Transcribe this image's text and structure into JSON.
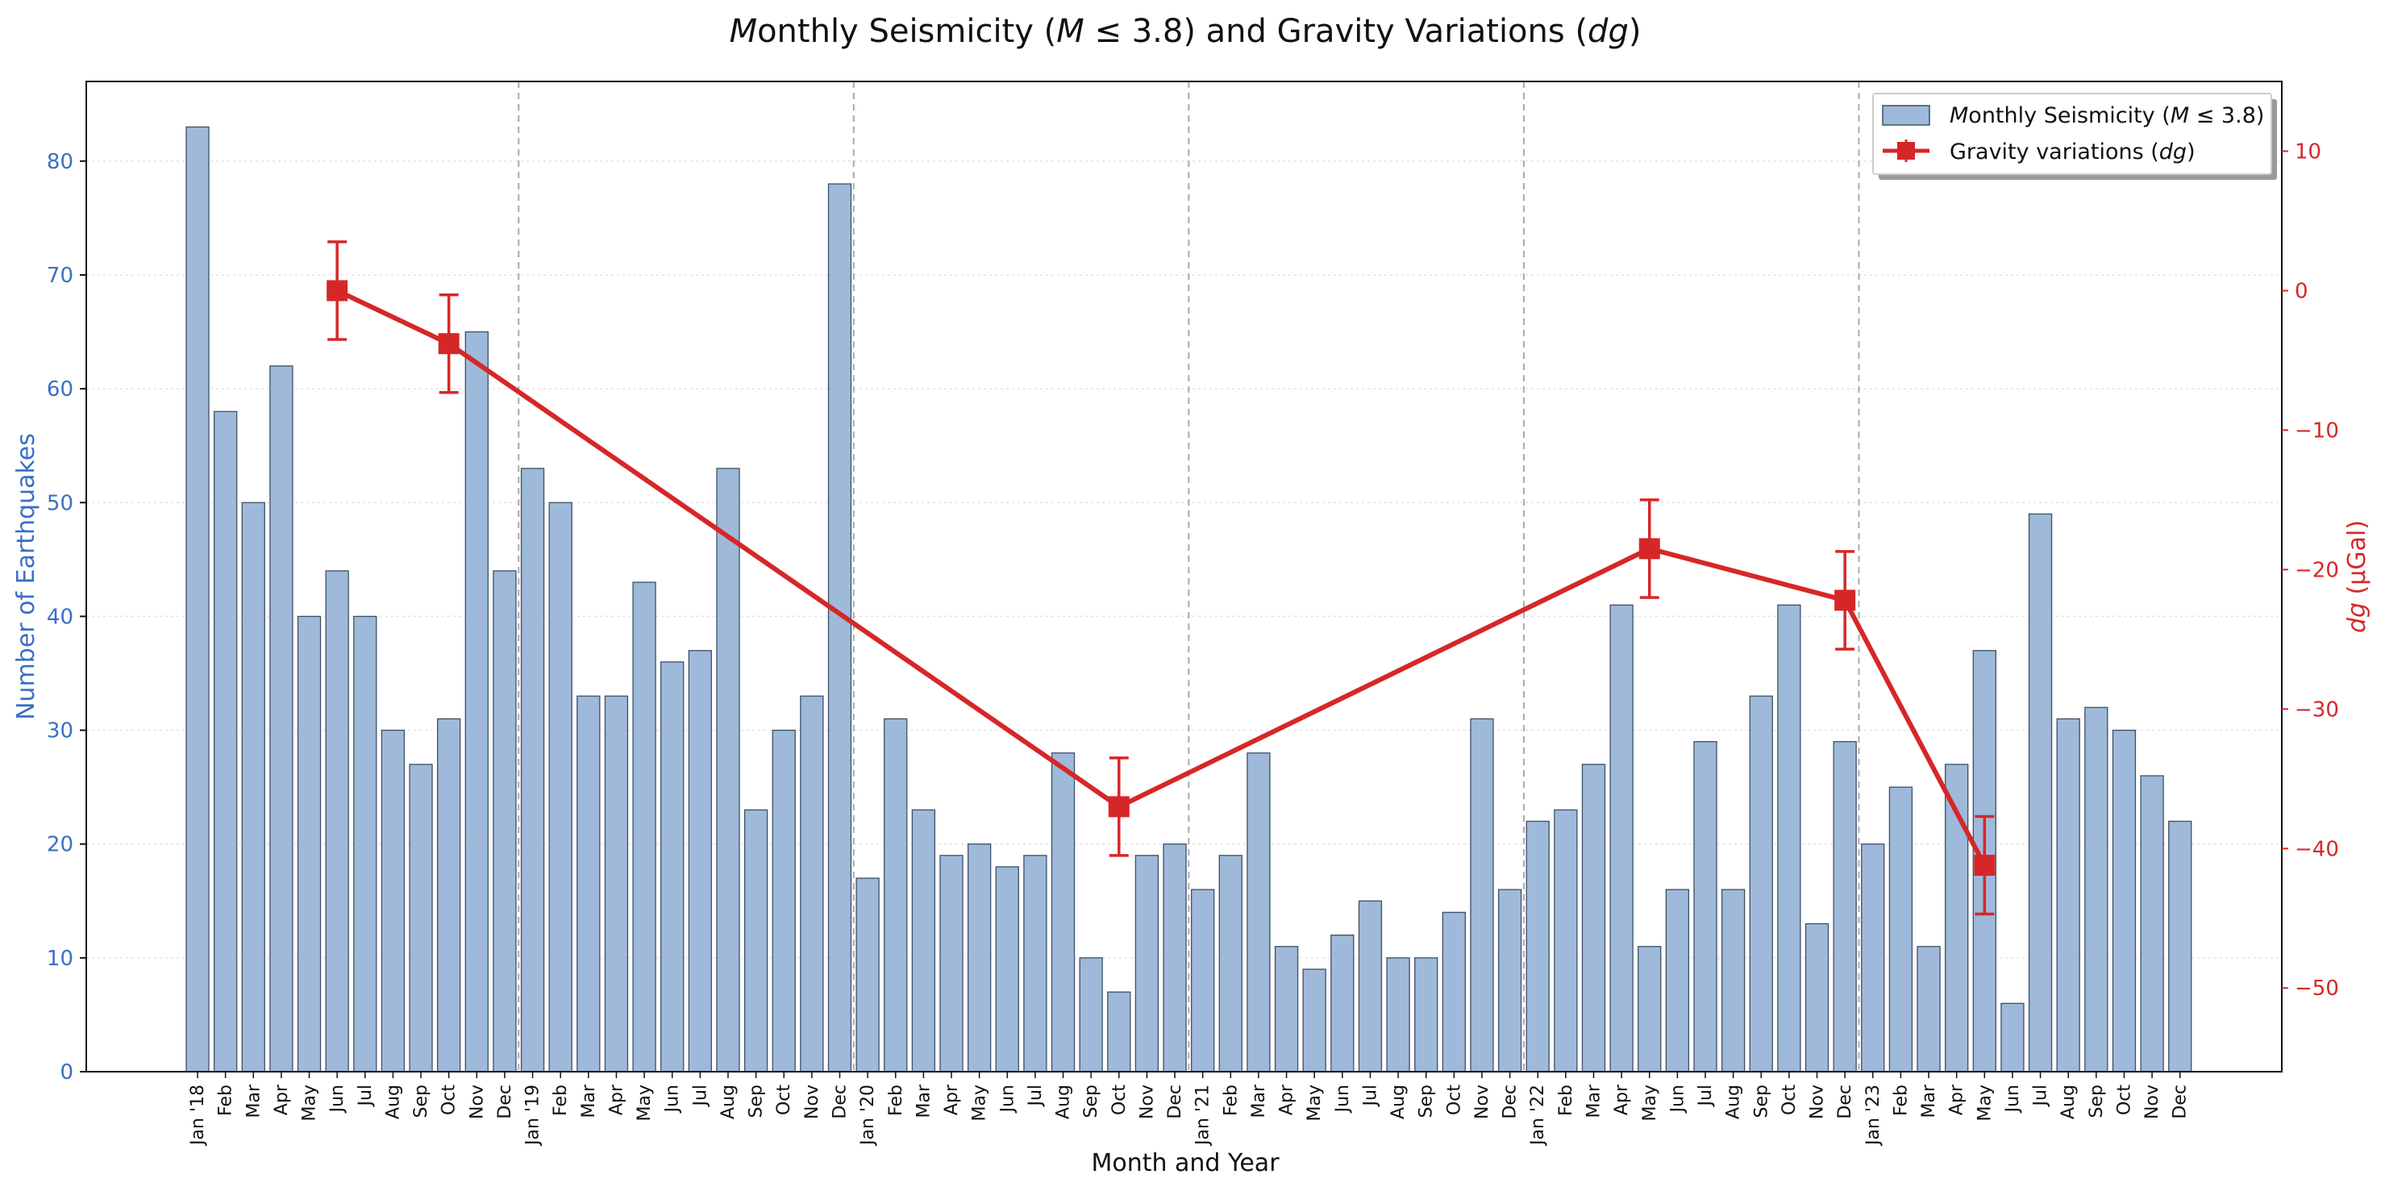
{
  "chart_data": {
    "type": "bar",
    "title": "Monthly Seismicity (M ≤ 3.8) and Gravity Variations (dg)",
    "xlabel": "Month and Year",
    "ylabel": "Number of Earthquakes",
    "y2label": "dg (μGal)",
    "ylim": [
      0,
      87
    ],
    "y2lim": [
      -56,
      15
    ],
    "yticks": [
      0,
      10,
      20,
      30,
      40,
      50,
      60,
      70,
      80
    ],
    "y2ticks": [
      10,
      0,
      -10,
      -20,
      -30,
      -40,
      -50
    ],
    "grid": "horizontal dotted",
    "legend_position": "top-right",
    "colors": {
      "bars": "#9eb9d9",
      "bar_edge": "#3d4f66",
      "line": "#d62728",
      "left_axis": "#3a6fc4",
      "right_axis": "#d62728",
      "year_divider": "#aaaaaa"
    },
    "categories": [
      "Jan '18",
      "Feb",
      "Mar",
      "Apr",
      "May",
      "Jun",
      "Jul",
      "Aug",
      "Sep",
      "Oct",
      "Nov",
      "Dec",
      "Jan '19",
      "Feb",
      "Mar",
      "Apr",
      "May",
      "Jun",
      "Jul",
      "Aug",
      "Sep",
      "Oct",
      "Nov",
      "Dec",
      "Jan '20",
      "Feb",
      "Mar",
      "Apr",
      "May",
      "Jun",
      "Jul",
      "Aug",
      "Sep",
      "Oct",
      "Nov",
      "Dec",
      "Jan '21",
      "Feb",
      "Mar",
      "Apr",
      "May",
      "Jun",
      "Jul",
      "Aug",
      "Sep",
      "Oct",
      "Nov",
      "Dec",
      "Jan '22",
      "Feb",
      "Mar",
      "Apr",
      "May",
      "Jun",
      "Jul",
      "Aug",
      "Sep",
      "Oct",
      "Nov",
      "Dec",
      "Jan '23",
      "Feb",
      "Mar",
      "Apr",
      "May",
      "Jun",
      "Jul",
      "Aug",
      "Sep",
      "Oct",
      "Nov",
      "Dec"
    ],
    "series": [
      {
        "name": "Monthly Seismicity (M ≤ 3.8)",
        "type": "bar",
        "axis": "left",
        "values": [
          83,
          58,
          50,
          62,
          40,
          44,
          40,
          30,
          27,
          31,
          65,
          44,
          53,
          50,
          33,
          33,
          43,
          36,
          37,
          53,
          23,
          30,
          33,
          78,
          17,
          31,
          23,
          19,
          20,
          18,
          19,
          28,
          10,
          7,
          19,
          20,
          16,
          19,
          28,
          11,
          9,
          12,
          15,
          10,
          10,
          14,
          31,
          16,
          22,
          23,
          27,
          41,
          11,
          16,
          29,
          16,
          33,
          41,
          13,
          29,
          20,
          25,
          11,
          27,
          37,
          6,
          49,
          31,
          32,
          30,
          26,
          22
        ]
      },
      {
        "name": "Gravity variations (dg)",
        "type": "line",
        "axis": "right",
        "points": [
          {
            "x": "Jun 2018",
            "y": 0.0,
            "err": 3.5
          },
          {
            "x": "Oct 2018",
            "y": -3.8,
            "err": 3.5
          },
          {
            "x": "Oct 2020",
            "y": -37.0,
            "err": 3.5
          },
          {
            "x": "May 2022",
            "y": -18.5,
            "err": 3.5
          },
          {
            "x": "Dec 2022",
            "y": -22.2,
            "err": 3.5
          },
          {
            "x": "May 2023",
            "y": -41.2,
            "err": 3.5
          }
        ]
      }
    ]
  }
}
